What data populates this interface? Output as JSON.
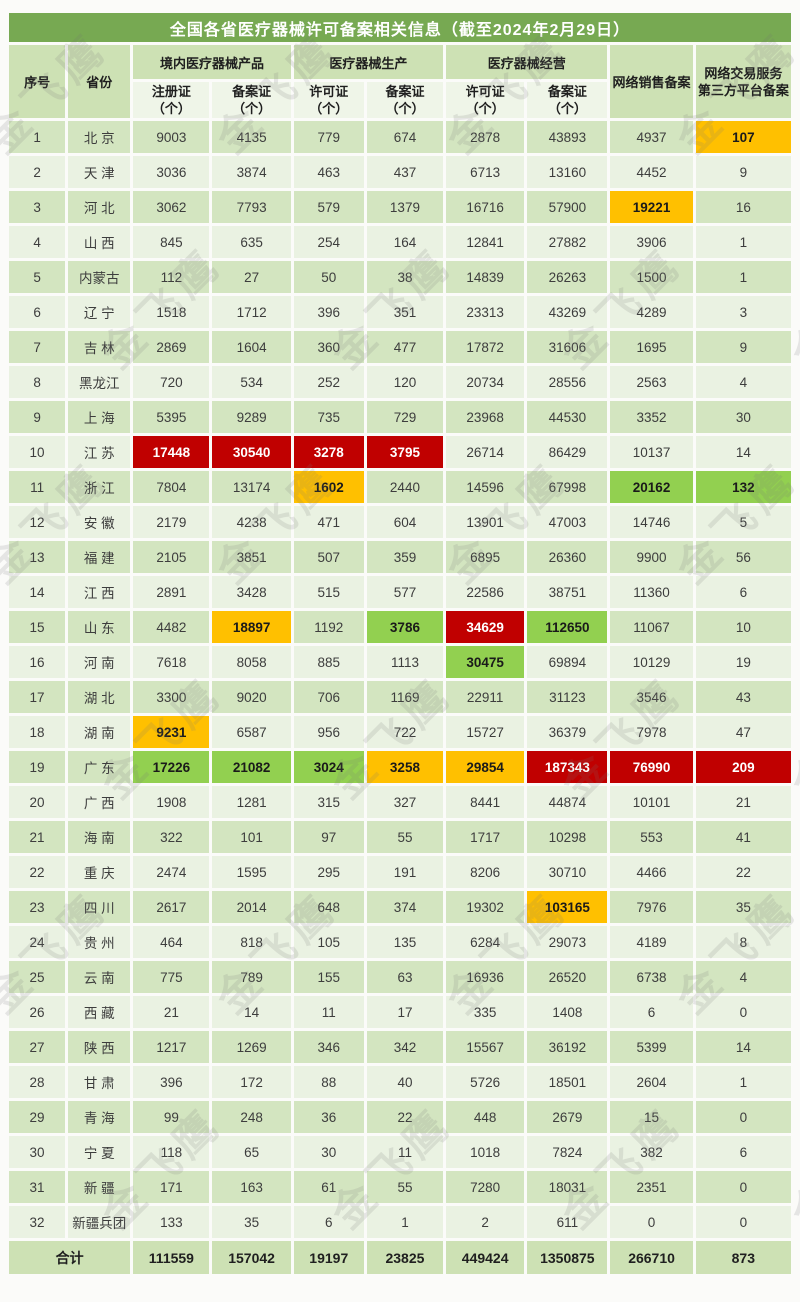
{
  "title": "全国各省医疗器械许可备案相关信息（截至2024年2月29日）",
  "watermark": {
    "text": "金飞鹰"
  },
  "colors": {
    "title_green": "#77a952",
    "header_green": "#cde1b4",
    "subheader_green": "#eff5e8",
    "row_odd": "#d3e5c0",
    "row_even": "#eaf2e2",
    "highlight_red": "#c00000",
    "highlight_orange": "#ffc000",
    "highlight_green": "#92d050"
  },
  "header": {
    "seq": "序号",
    "province": "省份",
    "groups": [
      {
        "label": "境内医疗器械产品",
        "subs": [
          "注册证\n（个）",
          "备案证\n（个）"
        ]
      },
      {
        "label": "医疗器械生产",
        "subs": [
          "许可证\n（个）",
          "备案证\n（个）"
        ]
      },
      {
        "label": "医疗器械经营",
        "subs": [
          "许可证\n（个）",
          "备案证\n（个）"
        ]
      }
    ],
    "network_sales": "网络销售备案",
    "network_platform": "网络交易服务\n第三方平台备案"
  },
  "rows": [
    {
      "seq": "1",
      "province": "北 京",
      "values": [
        9003,
        4135,
        779,
        674,
        2878,
        43893,
        4937,
        107
      ],
      "hl": [
        "",
        "",
        "",
        "",
        "",
        "",
        "",
        "orange"
      ]
    },
    {
      "seq": "2",
      "province": "天 津",
      "values": [
        3036,
        3874,
        463,
        437,
        6713,
        13160,
        4452,
        9
      ],
      "hl": [
        "",
        "",
        "",
        "",
        "",
        "",
        "",
        ""
      ]
    },
    {
      "seq": "3",
      "province": "河 北",
      "values": [
        3062,
        7793,
        579,
        1379,
        16716,
        57900,
        19221,
        16
      ],
      "hl": [
        "",
        "",
        "",
        "",
        "",
        "",
        "orange",
        ""
      ]
    },
    {
      "seq": "4",
      "province": "山 西",
      "values": [
        845,
        635,
        254,
        164,
        12841,
        27882,
        3906,
        1
      ],
      "hl": [
        "",
        "",
        "",
        "",
        "",
        "",
        "",
        ""
      ]
    },
    {
      "seq": "5",
      "province": "内蒙古",
      "values": [
        112,
        27,
        50,
        38,
        14839,
        26263,
        1500,
        1
      ],
      "hl": [
        "",
        "",
        "",
        "",
        "",
        "",
        "",
        ""
      ]
    },
    {
      "seq": "6",
      "province": "辽 宁",
      "values": [
        1518,
        1712,
        396,
        351,
        23313,
        43269,
        4289,
        3
      ],
      "hl": [
        "",
        "",
        "",
        "",
        "",
        "",
        "",
        ""
      ]
    },
    {
      "seq": "7",
      "province": "吉 林",
      "values": [
        2869,
        1604,
        360,
        477,
        17872,
        31606,
        1695,
        9
      ],
      "hl": [
        "",
        "",
        "",
        "",
        "",
        "",
        "",
        ""
      ]
    },
    {
      "seq": "8",
      "province": "黑龙江",
      "values": [
        720,
        534,
        252,
        120,
        20734,
        28556,
        2563,
        4
      ],
      "hl": [
        "",
        "",
        "",
        "",
        "",
        "",
        "",
        ""
      ]
    },
    {
      "seq": "9",
      "province": "上 海",
      "values": [
        5395,
        9289,
        735,
        729,
        23968,
        44530,
        3352,
        30
      ],
      "hl": [
        "",
        "",
        "",
        "",
        "",
        "",
        "",
        ""
      ]
    },
    {
      "seq": "10",
      "province": "江 苏",
      "values": [
        17448,
        30540,
        3278,
        3795,
        26714,
        86429,
        10137,
        14
      ],
      "hl": [
        "red",
        "red",
        "red",
        "red",
        "",
        "",
        "",
        ""
      ]
    },
    {
      "seq": "11",
      "province": "浙 江",
      "values": [
        7804,
        13174,
        1602,
        2440,
        14596,
        67998,
        20162,
        132
      ],
      "hl": [
        "",
        "",
        "orange",
        "",
        "",
        "",
        "green",
        "green"
      ]
    },
    {
      "seq": "12",
      "province": "安 徽",
      "values": [
        2179,
        4238,
        471,
        604,
        13901,
        47003,
        14746,
        5
      ],
      "hl": [
        "",
        "",
        "",
        "",
        "",
        "",
        "",
        ""
      ]
    },
    {
      "seq": "13",
      "province": "福 建",
      "values": [
        2105,
        3851,
        507,
        359,
        6895,
        26360,
        9900,
        56
      ],
      "hl": [
        "",
        "",
        "",
        "",
        "",
        "",
        "",
        ""
      ]
    },
    {
      "seq": "14",
      "province": "江 西",
      "values": [
        2891,
        3428,
        515,
        577,
        22586,
        38751,
        11360,
        6
      ],
      "hl": [
        "",
        "",
        "",
        "",
        "",
        "",
        "",
        ""
      ]
    },
    {
      "seq": "15",
      "province": "山 东",
      "values": [
        4482,
        18897,
        1192,
        3786,
        34629,
        112650,
        11067,
        10
      ],
      "hl": [
        "",
        "orange",
        "",
        "green",
        "red",
        "green",
        "",
        ""
      ]
    },
    {
      "seq": "16",
      "province": "河 南",
      "values": [
        7618,
        8058,
        885,
        1113,
        30475,
        69894,
        10129,
        19
      ],
      "hl": [
        "",
        "",
        "",
        "",
        "green",
        "",
        "",
        ""
      ]
    },
    {
      "seq": "17",
      "province": "湖 北",
      "values": [
        3300,
        9020,
        706,
        1169,
        22911,
        31123,
        3546,
        43
      ],
      "hl": [
        "",
        "",
        "",
        "",
        "",
        "",
        "",
        ""
      ]
    },
    {
      "seq": "18",
      "province": "湖 南",
      "values": [
        9231,
        6587,
        956,
        722,
        15727,
        36379,
        7978,
        47
      ],
      "hl": [
        "orange",
        "",
        "",
        "",
        "",
        "",
        "",
        ""
      ]
    },
    {
      "seq": "19",
      "province": "广 东",
      "values": [
        17226,
        21082,
        3024,
        3258,
        29854,
        187343,
        76990,
        209
      ],
      "hl": [
        "green",
        "green",
        "green",
        "orange",
        "orange",
        "red",
        "red",
        "red"
      ]
    },
    {
      "seq": "20",
      "province": "广 西",
      "values": [
        1908,
        1281,
        315,
        327,
        8441,
        44874,
        10101,
        21
      ],
      "hl": [
        "",
        "",
        "",
        "",
        "",
        "",
        "",
        ""
      ]
    },
    {
      "seq": "21",
      "province": "海 南",
      "values": [
        322,
        101,
        97,
        55,
        1717,
        10298,
        553,
        41
      ],
      "hl": [
        "",
        "",
        "",
        "",
        "",
        "",
        "",
        ""
      ]
    },
    {
      "seq": "22",
      "province": "重 庆",
      "values": [
        2474,
        1595,
        295,
        191,
        8206,
        30710,
        4466,
        22
      ],
      "hl": [
        "",
        "",
        "",
        "",
        "",
        "",
        "",
        ""
      ]
    },
    {
      "seq": "23",
      "province": "四 川",
      "values": [
        2617,
        2014,
        648,
        374,
        19302,
        103165,
        7976,
        35
      ],
      "hl": [
        "",
        "",
        "",
        "",
        "",
        "orange",
        "",
        ""
      ]
    },
    {
      "seq": "24",
      "province": "贵 州",
      "values": [
        464,
        818,
        105,
        135,
        6284,
        29073,
        4189,
        8
      ],
      "hl": [
        "",
        "",
        "",
        "",
        "",
        "",
        "",
        ""
      ]
    },
    {
      "seq": "25",
      "province": "云 南",
      "values": [
        775,
        789,
        155,
        63,
        16936,
        26520,
        6738,
        4
      ],
      "hl": [
        "",
        "",
        "",
        "",
        "",
        "",
        "",
        ""
      ]
    },
    {
      "seq": "26",
      "province": "西 藏",
      "values": [
        21,
        14,
        11,
        17,
        335,
        1408,
        6,
        0
      ],
      "hl": [
        "",
        "",
        "",
        "",
        "",
        "",
        "",
        ""
      ]
    },
    {
      "seq": "27",
      "province": "陕 西",
      "values": [
        1217,
        1269,
        346,
        342,
        15567,
        36192,
        5399,
        14
      ],
      "hl": [
        "",
        "",
        "",
        "",
        "",
        "",
        "",
        ""
      ]
    },
    {
      "seq": "28",
      "province": "甘 肃",
      "values": [
        396,
        172,
        88,
        40,
        5726,
        18501,
        2604,
        1
      ],
      "hl": [
        "",
        "",
        "",
        "",
        "",
        "",
        "",
        ""
      ]
    },
    {
      "seq": "29",
      "province": "青 海",
      "values": [
        99,
        248,
        36,
        22,
        448,
        2679,
        15,
        0
      ],
      "hl": [
        "",
        "",
        "",
        "",
        "",
        "",
        "",
        ""
      ]
    },
    {
      "seq": "30",
      "province": "宁 夏",
      "values": [
        118,
        65,
        30,
        11,
        1018,
        7824,
        382,
        6
      ],
      "hl": [
        "",
        "",
        "",
        "",
        "",
        "",
        "",
        ""
      ]
    },
    {
      "seq": "31",
      "province": "新 疆",
      "values": [
        171,
        163,
        61,
        55,
        7280,
        18031,
        2351,
        0
      ],
      "hl": [
        "",
        "",
        "",
        "",
        "",
        "",
        "",
        ""
      ]
    },
    {
      "seq": "32",
      "province": "新疆兵团",
      "values": [
        133,
        35,
        6,
        1,
        2,
        611,
        0,
        0
      ],
      "hl": [
        "",
        "",
        "",
        "",
        "",
        "",
        "",
        ""
      ]
    }
  ],
  "total": {
    "label": "合计",
    "values": [
      111559,
      157042,
      19197,
      23825,
      449424,
      1350875,
      266710,
      873
    ]
  }
}
